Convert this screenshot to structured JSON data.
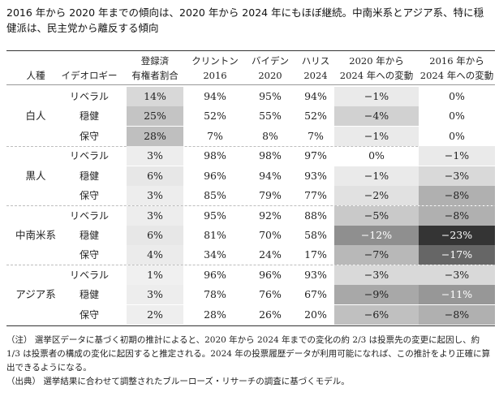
{
  "title": "2016 年から 2020 年までの傾向は、2020 年から 2024 年にもほぼ継続。中南米系とアジア系、特に穏健派は、民主党から離反する傾向",
  "headers": {
    "race": "人種",
    "ideology": "イデオロギー",
    "share": [
      "登録済",
      "有権者割合"
    ],
    "clinton": [
      "クリントン",
      "2016"
    ],
    "biden": [
      "バイデン",
      "2020"
    ],
    "harris": [
      "ハリス",
      "2024"
    ],
    "chg2020": [
      "2020 年から",
      "2024 年への変動"
    ],
    "chg2016": [
      "2016 年から",
      "2024 年への変動"
    ]
  },
  "groups": [
    {
      "race": "白人",
      "rows": [
        {
          "ideology": "リベラル",
          "share": "14%",
          "clinton": "94%",
          "biden": "95%",
          "harris": "94%",
          "chg2020": "−1%",
          "chg2016": "0%"
        },
        {
          "ideology": "穏健",
          "share": "25%",
          "clinton": "52%",
          "biden": "55%",
          "harris": "52%",
          "chg2020": "−4%",
          "chg2016": "0%"
        },
        {
          "ideology": "保守",
          "share": "28%",
          "clinton": "7%",
          "biden": "8%",
          "harris": "7%",
          "chg2020": "−1%",
          "chg2016": "0%"
        }
      ]
    },
    {
      "race": "黒人",
      "rows": [
        {
          "ideology": "リベラル",
          "share": "3%",
          "clinton": "98%",
          "biden": "98%",
          "harris": "97%",
          "chg2020": "0%",
          "chg2016": "−1%"
        },
        {
          "ideology": "穏健",
          "share": "6%",
          "clinton": "96%",
          "biden": "94%",
          "harris": "93%",
          "chg2020": "−1%",
          "chg2016": "−3%"
        },
        {
          "ideology": "保守",
          "share": "3%",
          "clinton": "85%",
          "biden": "79%",
          "harris": "77%",
          "chg2020": "−2%",
          "chg2016": "−8%"
        }
      ]
    },
    {
      "race": "中南米系",
      "rows": [
        {
          "ideology": "リベラル",
          "share": "3%",
          "clinton": "95%",
          "biden": "92%",
          "harris": "88%",
          "chg2020": "−5%",
          "chg2016": "−8%"
        },
        {
          "ideology": "穏健",
          "share": "6%",
          "clinton": "81%",
          "biden": "70%",
          "harris": "58%",
          "chg2020": "−12%",
          "chg2016": "−23%"
        },
        {
          "ideology": "保守",
          "share": "4%",
          "clinton": "34%",
          "biden": "24%",
          "harris": "17%",
          "chg2020": "−7%",
          "chg2016": "−17%"
        }
      ]
    },
    {
      "race": "アジア系",
      "rows": [
        {
          "ideology": "リベラル",
          "share": "1%",
          "clinton": "96%",
          "biden": "96%",
          "harris": "93%",
          "chg2020": "−3%",
          "chg2016": "−3%"
        },
        {
          "ideology": "穏健",
          "share": "3%",
          "clinton": "78%",
          "biden": "76%",
          "harris": "67%",
          "chg2020": "−9%",
          "chg2016": "−11%"
        },
        {
          "ideology": "保守",
          "share": "2%",
          "clinton": "28%",
          "biden": "26%",
          "harris": "20%",
          "chg2020": "−6%",
          "chg2016": "−8%"
        }
      ]
    }
  ],
  "notes": [
    "（注） 選挙区データに基づく初期の推計によると、2020 年から 2024 年までの変化の約 2/3 は投票先の変更に起因し、約 1/3 は投票者の構成の変化に起因すると推定される。2024 年の投票履歴データが利用可能になれば、この推計をより正確に算出できるようになる。",
    "（出典） 選挙結果に合わせて調整されたブルーローズ・リサーチの調査に基づくモデル。"
  ]
}
